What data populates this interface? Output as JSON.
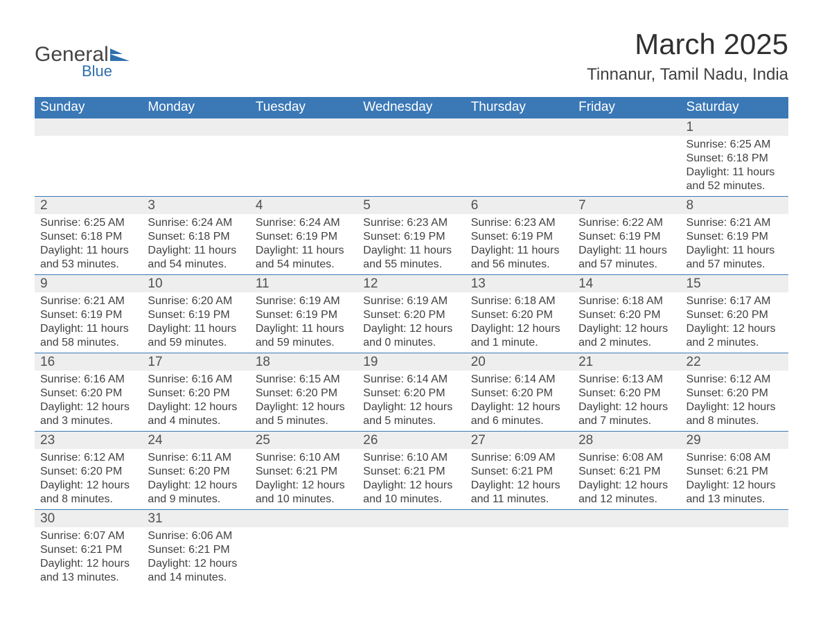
{
  "logo": {
    "text_general": "General",
    "text_blue": "Blue",
    "shape_color": "#2f6fad",
    "text_dark": "#444444"
  },
  "header": {
    "month_title": "March 2025",
    "location": "Tinnanur, Tamil Nadu, India"
  },
  "calendar": {
    "header_bg": "#3a78b6",
    "header_text_color": "#ffffff",
    "daynum_bg": "#eeeeee",
    "row_border_color": "#3a78b6",
    "text_color": "#404040",
    "day_headers": [
      "Sunday",
      "Monday",
      "Tuesday",
      "Wednesday",
      "Thursday",
      "Friday",
      "Saturday"
    ],
    "weeks": [
      [
        null,
        null,
        null,
        null,
        null,
        null,
        {
          "num": "1",
          "sunrise": "Sunrise: 6:25 AM",
          "sunset": "Sunset: 6:18 PM",
          "daylight": "Daylight: 11 hours and 52 minutes."
        }
      ],
      [
        {
          "num": "2",
          "sunrise": "Sunrise: 6:25 AM",
          "sunset": "Sunset: 6:18 PM",
          "daylight": "Daylight: 11 hours and 53 minutes."
        },
        {
          "num": "3",
          "sunrise": "Sunrise: 6:24 AM",
          "sunset": "Sunset: 6:18 PM",
          "daylight": "Daylight: 11 hours and 54 minutes."
        },
        {
          "num": "4",
          "sunrise": "Sunrise: 6:24 AM",
          "sunset": "Sunset: 6:19 PM",
          "daylight": "Daylight: 11 hours and 54 minutes."
        },
        {
          "num": "5",
          "sunrise": "Sunrise: 6:23 AM",
          "sunset": "Sunset: 6:19 PM",
          "daylight": "Daylight: 11 hours and 55 minutes."
        },
        {
          "num": "6",
          "sunrise": "Sunrise: 6:23 AM",
          "sunset": "Sunset: 6:19 PM",
          "daylight": "Daylight: 11 hours and 56 minutes."
        },
        {
          "num": "7",
          "sunrise": "Sunrise: 6:22 AM",
          "sunset": "Sunset: 6:19 PM",
          "daylight": "Daylight: 11 hours and 57 minutes."
        },
        {
          "num": "8",
          "sunrise": "Sunrise: 6:21 AM",
          "sunset": "Sunset: 6:19 PM",
          "daylight": "Daylight: 11 hours and 57 minutes."
        }
      ],
      [
        {
          "num": "9",
          "sunrise": "Sunrise: 6:21 AM",
          "sunset": "Sunset: 6:19 PM",
          "daylight": "Daylight: 11 hours and 58 minutes."
        },
        {
          "num": "10",
          "sunrise": "Sunrise: 6:20 AM",
          "sunset": "Sunset: 6:19 PM",
          "daylight": "Daylight: 11 hours and 59 minutes."
        },
        {
          "num": "11",
          "sunrise": "Sunrise: 6:19 AM",
          "sunset": "Sunset: 6:19 PM",
          "daylight": "Daylight: 11 hours and 59 minutes."
        },
        {
          "num": "12",
          "sunrise": "Sunrise: 6:19 AM",
          "sunset": "Sunset: 6:20 PM",
          "daylight": "Daylight: 12 hours and 0 minutes."
        },
        {
          "num": "13",
          "sunrise": "Sunrise: 6:18 AM",
          "sunset": "Sunset: 6:20 PM",
          "daylight": "Daylight: 12 hours and 1 minute."
        },
        {
          "num": "14",
          "sunrise": "Sunrise: 6:18 AM",
          "sunset": "Sunset: 6:20 PM",
          "daylight": "Daylight: 12 hours and 2 minutes."
        },
        {
          "num": "15",
          "sunrise": "Sunrise: 6:17 AM",
          "sunset": "Sunset: 6:20 PM",
          "daylight": "Daylight: 12 hours and 2 minutes."
        }
      ],
      [
        {
          "num": "16",
          "sunrise": "Sunrise: 6:16 AM",
          "sunset": "Sunset: 6:20 PM",
          "daylight": "Daylight: 12 hours and 3 minutes."
        },
        {
          "num": "17",
          "sunrise": "Sunrise: 6:16 AM",
          "sunset": "Sunset: 6:20 PM",
          "daylight": "Daylight: 12 hours and 4 minutes."
        },
        {
          "num": "18",
          "sunrise": "Sunrise: 6:15 AM",
          "sunset": "Sunset: 6:20 PM",
          "daylight": "Daylight: 12 hours and 5 minutes."
        },
        {
          "num": "19",
          "sunrise": "Sunrise: 6:14 AM",
          "sunset": "Sunset: 6:20 PM",
          "daylight": "Daylight: 12 hours and 5 minutes."
        },
        {
          "num": "20",
          "sunrise": "Sunrise: 6:14 AM",
          "sunset": "Sunset: 6:20 PM",
          "daylight": "Daylight: 12 hours and 6 minutes."
        },
        {
          "num": "21",
          "sunrise": "Sunrise: 6:13 AM",
          "sunset": "Sunset: 6:20 PM",
          "daylight": "Daylight: 12 hours and 7 minutes."
        },
        {
          "num": "22",
          "sunrise": "Sunrise: 6:12 AM",
          "sunset": "Sunset: 6:20 PM",
          "daylight": "Daylight: 12 hours and 8 minutes."
        }
      ],
      [
        {
          "num": "23",
          "sunrise": "Sunrise: 6:12 AM",
          "sunset": "Sunset: 6:20 PM",
          "daylight": "Daylight: 12 hours and 8 minutes."
        },
        {
          "num": "24",
          "sunrise": "Sunrise: 6:11 AM",
          "sunset": "Sunset: 6:20 PM",
          "daylight": "Daylight: 12 hours and 9 minutes."
        },
        {
          "num": "25",
          "sunrise": "Sunrise: 6:10 AM",
          "sunset": "Sunset: 6:21 PM",
          "daylight": "Daylight: 12 hours and 10 minutes."
        },
        {
          "num": "26",
          "sunrise": "Sunrise: 6:10 AM",
          "sunset": "Sunset: 6:21 PM",
          "daylight": "Daylight: 12 hours and 10 minutes."
        },
        {
          "num": "27",
          "sunrise": "Sunrise: 6:09 AM",
          "sunset": "Sunset: 6:21 PM",
          "daylight": "Daylight: 12 hours and 11 minutes."
        },
        {
          "num": "28",
          "sunrise": "Sunrise: 6:08 AM",
          "sunset": "Sunset: 6:21 PM",
          "daylight": "Daylight: 12 hours and 12 minutes."
        },
        {
          "num": "29",
          "sunrise": "Sunrise: 6:08 AM",
          "sunset": "Sunset: 6:21 PM",
          "daylight": "Daylight: 12 hours and 13 minutes."
        }
      ],
      [
        {
          "num": "30",
          "sunrise": "Sunrise: 6:07 AM",
          "sunset": "Sunset: 6:21 PM",
          "daylight": "Daylight: 12 hours and 13 minutes."
        },
        {
          "num": "31",
          "sunrise": "Sunrise: 6:06 AM",
          "sunset": "Sunset: 6:21 PM",
          "daylight": "Daylight: 12 hours and 14 minutes."
        },
        null,
        null,
        null,
        null,
        null
      ]
    ]
  }
}
